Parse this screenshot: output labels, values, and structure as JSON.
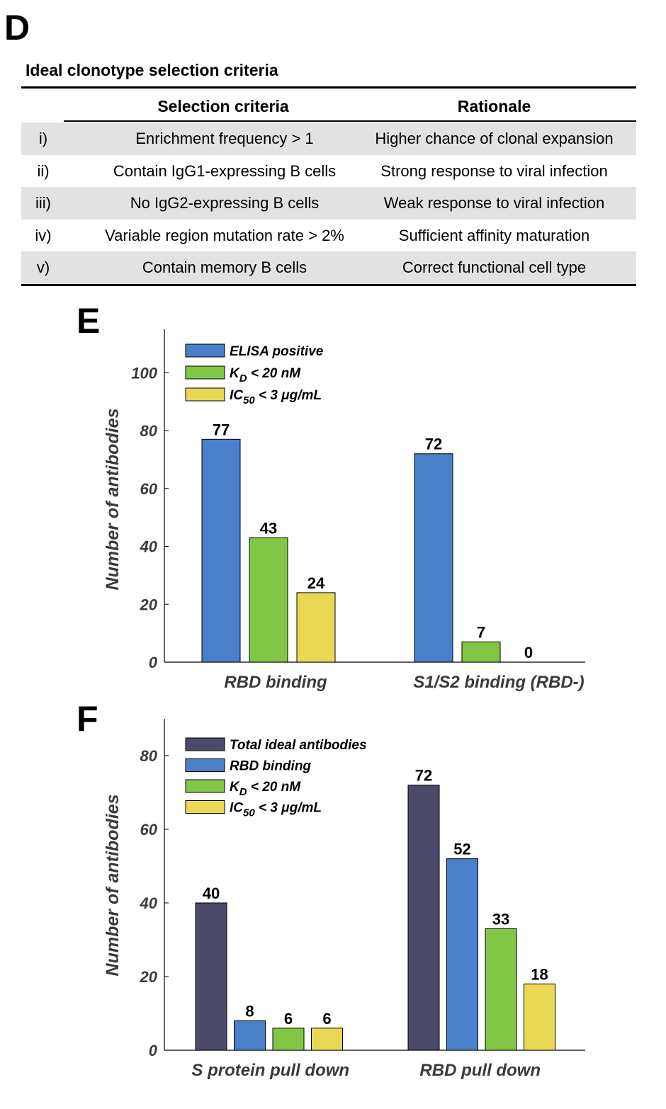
{
  "panels": {
    "d": "D",
    "e": "E",
    "f": "F"
  },
  "table": {
    "title": "Ideal clonotype selection criteria",
    "headers": {
      "criteria": "Selection criteria",
      "rationale": "Rationale"
    },
    "rows": [
      {
        "num": "i)",
        "criteria": "Enrichment frequency > 1",
        "rationale": "Higher chance of clonal expansion"
      },
      {
        "num": "ii)",
        "criteria": "Contain IgG1-expressing B cells",
        "rationale": "Strong response to viral infection"
      },
      {
        "num": "iii)",
        "criteria": "No IgG2-expressing B cells",
        "rationale": "Weak response to viral infection"
      },
      {
        "num": "iv)",
        "criteria": "Variable region mutation rate > 2%",
        "rationale": "Sufficient affinity maturation"
      },
      {
        "num": "v)",
        "criteria": "Contain memory B cells",
        "rationale": "Correct functional cell type"
      }
    ]
  },
  "colors": {
    "navy": "#4b4a69",
    "blue": "#4a7fc9",
    "green": "#82c645",
    "yellow": "#e8d854",
    "row_shade": "#e2e2e2"
  },
  "chart_data": [
    {
      "type": "bar",
      "categories": [
        "RBD binding",
        "S1/S2 binding (RBD-)"
      ],
      "series": [
        {
          "name": "ELISA positive",
          "color": "#4a7fc9",
          "values": [
            77,
            72
          ]
        },
        {
          "name": "K_D < 20 nM",
          "color": "#82c645",
          "values": [
            43,
            7
          ]
        },
        {
          "name": "IC_50 < 3 μg/mL",
          "color": "#e8d854",
          "values": [
            24,
            0
          ]
        }
      ],
      "ylabel": "Number of antibodies",
      "ylim": [
        0,
        115
      ],
      "yticks": [
        0,
        20,
        40,
        60,
        80,
        100
      ],
      "legend": "top-left",
      "grid": false
    },
    {
      "type": "bar",
      "categories": [
        "S protein pull down",
        "RBD pull down"
      ],
      "series": [
        {
          "name": "Total ideal antibodies",
          "color": "#4b4a69",
          "values": [
            40,
            72
          ]
        },
        {
          "name": "RBD binding",
          "color": "#4a7fc9",
          "values": [
            8,
            52
          ]
        },
        {
          "name": "K_D < 20 nM",
          "color": "#82c645",
          "values": [
            6,
            33
          ]
        },
        {
          "name": "IC_50 < 3 μg/mL",
          "color": "#e8d854",
          "values": [
            6,
            18
          ]
        }
      ],
      "ylabel": "Number of antibodies",
      "ylim": [
        0,
        90
      ],
      "yticks": [
        0,
        20,
        40,
        60,
        80
      ],
      "legend": "top-left",
      "grid": false
    }
  ]
}
